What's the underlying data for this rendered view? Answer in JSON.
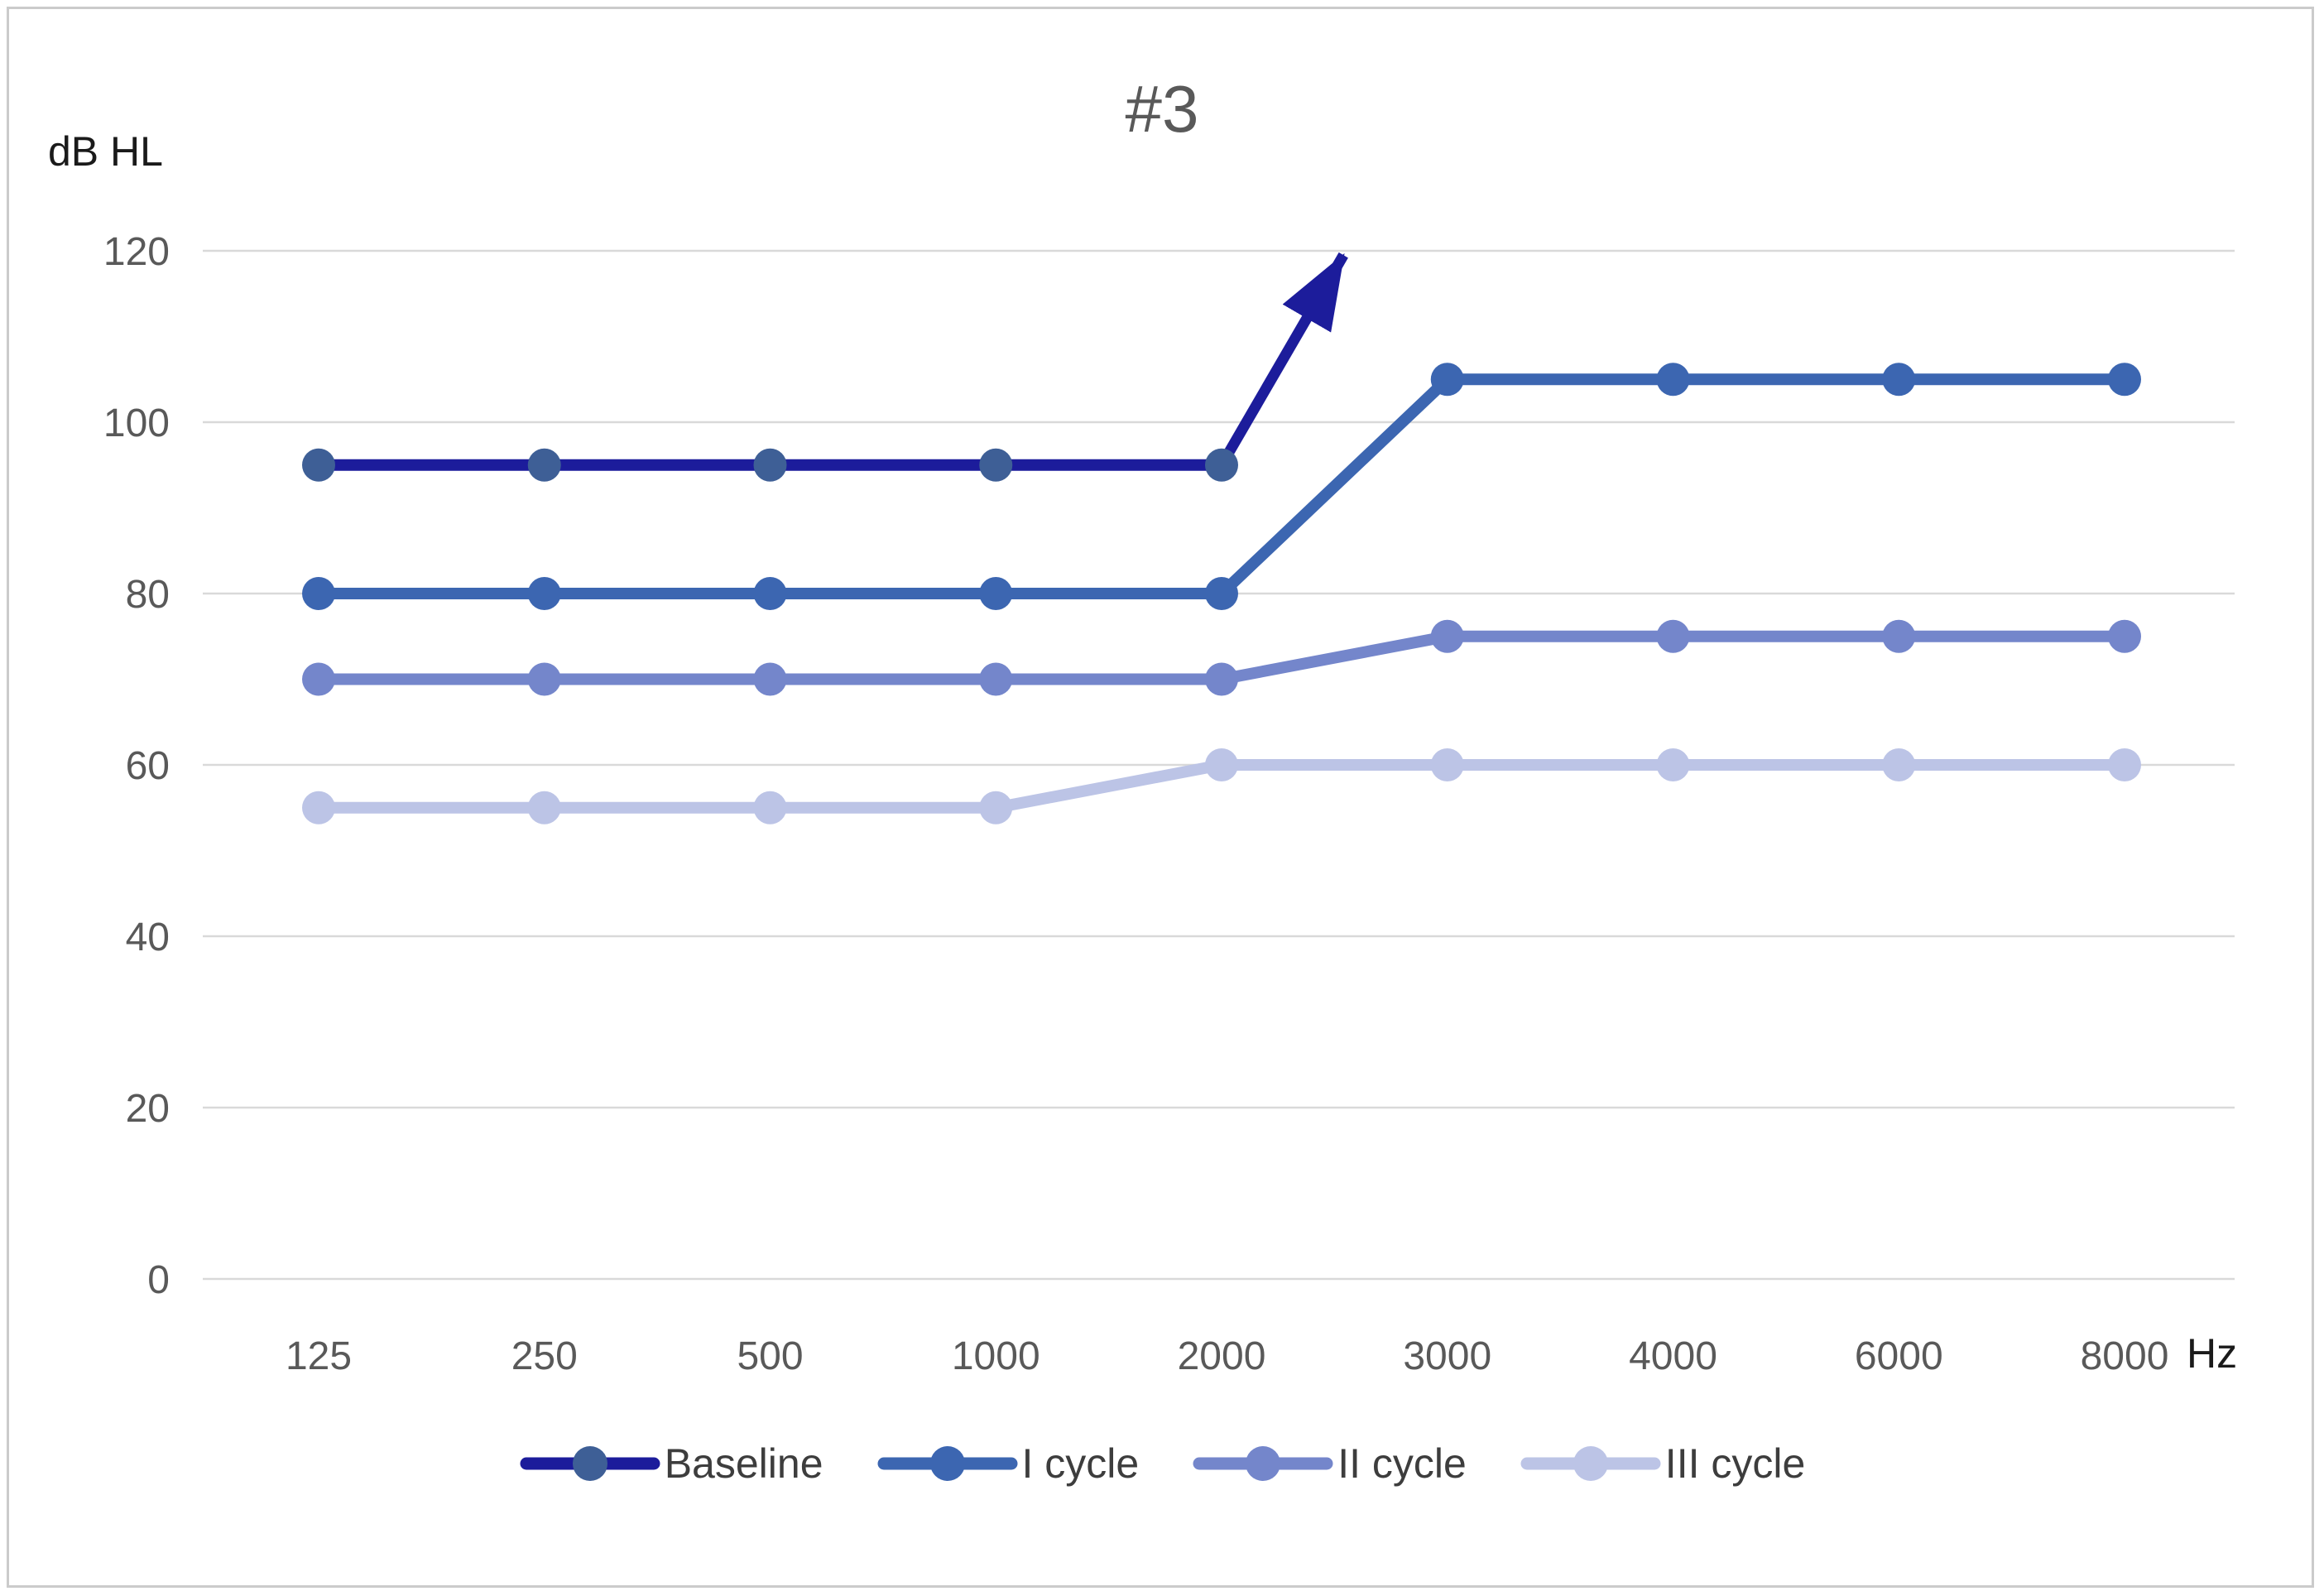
{
  "window": {
    "background": "#ffffff",
    "frame_border_color": "#cbcbcb"
  },
  "chart_data": {
    "type": "line",
    "title": "#3",
    "y_axis": {
      "unit_label": "dB HL",
      "ticks": [
        0,
        20,
        40,
        60,
        80,
        100,
        120
      ],
      "ylim": [
        0,
        120
      ],
      "grid": true
    },
    "x_axis": {
      "unit_label": "Hz",
      "categories": [
        "125",
        "250",
        "500",
        "1000",
        "2000",
        "3000",
        "4000",
        "6000",
        "8000"
      ]
    },
    "series": [
      {
        "name": "Baseline",
        "color": "#1C1C9B",
        "marker_color": "#3E5F96",
        "values": [
          95,
          95,
          95,
          95,
          95,
          null,
          null,
          null,
          null
        ]
      },
      {
        "name": "I cycle",
        "color": "#3C66B1",
        "marker_color": "#3C66B1",
        "values": [
          80,
          80,
          80,
          80,
          80,
          105,
          105,
          105,
          105
        ]
      },
      {
        "name": "II cycle",
        "color": "#7486CB",
        "marker_color": "#7486CB",
        "values": [
          70,
          70,
          70,
          70,
          70,
          75,
          75,
          75,
          75
        ]
      },
      {
        "name": "III cycle",
        "color": "#BCC4E6",
        "marker_color": "#BCC4E6",
        "values": [
          55,
          55,
          55,
          55,
          60,
          60,
          60,
          60,
          60
        ]
      }
    ],
    "annotation_arrow": {
      "series": "Baseline",
      "from": {
        "category": "2000",
        "value": 95
      },
      "to": {
        "category_index_fraction": 4.54,
        "value": 119.5
      },
      "color": "#1C1C9B"
    },
    "legend": {
      "position": "bottom",
      "entries": [
        "Baseline",
        "I cycle",
        "II cycle",
        "III cycle"
      ]
    }
  },
  "styles": {
    "grid_color": "#D9D9D9",
    "tick_label_color": "#595959",
    "title_color": "#595959",
    "unit_label_color": "#1a1a1a",
    "legend_text_color": "#3d3d3d"
  }
}
